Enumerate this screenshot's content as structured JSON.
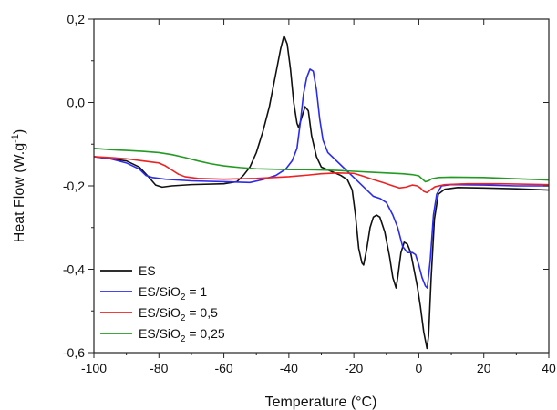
{
  "chart_data": {
    "type": "line",
    "xlabel": "Temperature (°C)",
    "ylabel_parts": {
      "main": "Heat Flow (W.g",
      "sup": "-1",
      "close": ")"
    },
    "xlim": [
      -100,
      40
    ],
    "ylim": [
      -0.6,
      0.2
    ],
    "x_ticks": [
      -100,
      -80,
      -60,
      -40,
      -20,
      0,
      20,
      40
    ],
    "x_tick_labels": [
      "-100",
      "-80",
      "-60",
      "-40",
      "-20",
      "0",
      "20",
      "40"
    ],
    "y_ticks": [
      0.2,
      0.0,
      -0.2,
      -0.4,
      -0.6
    ],
    "y_tick_labels": [
      "0,2",
      "0,0",
      "-0,2",
      "-0,4",
      "-0,6"
    ],
    "grid": false,
    "legend_position": "bottom-left",
    "series": [
      {
        "legend": {
          "pre": "ES",
          "sub": "",
          "post": ""
        },
        "color": "#111111",
        "points": [
          [
            -100,
            -0.13
          ],
          [
            -95,
            -0.135
          ],
          [
            -90,
            -0.14
          ],
          [
            -86,
            -0.155
          ],
          [
            -83,
            -0.18
          ],
          [
            -81,
            -0.198
          ],
          [
            -79,
            -0.203
          ],
          [
            -76,
            -0.2
          ],
          [
            -70,
            -0.197
          ],
          [
            -60,
            -0.195
          ],
          [
            -56,
            -0.19
          ],
          [
            -54,
            -0.175
          ],
          [
            -52,
            -0.155
          ],
          [
            -50,
            -0.12
          ],
          [
            -48,
            -0.07
          ],
          [
            -46,
            -0.01
          ],
          [
            -44,
            0.07
          ],
          [
            -42.5,
            0.13
          ],
          [
            -41.5,
            0.16
          ],
          [
            -40.5,
            0.14
          ],
          [
            -39.5,
            0.08
          ],
          [
            -38.5,
            0.0
          ],
          [
            -37.5,
            -0.05
          ],
          [
            -37,
            -0.06
          ],
          [
            -36,
            -0.035
          ],
          [
            -35,
            -0.01
          ],
          [
            -34,
            -0.02
          ],
          [
            -33,
            -0.08
          ],
          [
            -31.5,
            -0.13
          ],
          [
            -30,
            -0.155
          ],
          [
            -27,
            -0.165
          ],
          [
            -24,
            -0.175
          ],
          [
            -22,
            -0.185
          ],
          [
            -20.5,
            -0.21
          ],
          [
            -19.5,
            -0.27
          ],
          [
            -18.5,
            -0.35
          ],
          [
            -17.5,
            -0.385
          ],
          [
            -17,
            -0.39
          ],
          [
            -16,
            -0.35
          ],
          [
            -15,
            -0.3
          ],
          [
            -14,
            -0.275
          ],
          [
            -13,
            -0.27
          ],
          [
            -12,
            -0.275
          ],
          [
            -10.5,
            -0.31
          ],
          [
            -9,
            -0.37
          ],
          [
            -8,
            -0.42
          ],
          [
            -7,
            -0.445
          ],
          [
            -6.5,
            -0.42
          ],
          [
            -5.5,
            -0.36
          ],
          [
            -4.5,
            -0.335
          ],
          [
            -3.5,
            -0.34
          ],
          [
            -2.5,
            -0.36
          ],
          [
            -1.5,
            -0.4
          ],
          [
            -0.5,
            -0.44
          ],
          [
            0.5,
            -0.49
          ],
          [
            1.5,
            -0.55
          ],
          [
            2.5,
            -0.59
          ],
          [
            3,
            -0.56
          ],
          [
            3.8,
            -0.42
          ],
          [
            4.8,
            -0.28
          ],
          [
            6,
            -0.22
          ],
          [
            8,
            -0.208
          ],
          [
            12,
            -0.204
          ],
          [
            20,
            -0.205
          ],
          [
            30,
            -0.207
          ],
          [
            40,
            -0.21
          ]
        ]
      },
      {
        "legend": {
          "pre": "ES/SiO",
          "sub": "2",
          "post": " = 1"
        },
        "color": "#2b2bf0",
        "points": [
          [
            -100,
            -0.13
          ],
          [
            -95,
            -0.135
          ],
          [
            -90,
            -0.145
          ],
          [
            -86,
            -0.16
          ],
          [
            -84,
            -0.175
          ],
          [
            -82,
            -0.18
          ],
          [
            -78,
            -0.184
          ],
          [
            -70,
            -0.188
          ],
          [
            -60,
            -0.19
          ],
          [
            -52,
            -0.192
          ],
          [
            -48,
            -0.185
          ],
          [
            -44,
            -0.175
          ],
          [
            -41,
            -0.16
          ],
          [
            -39,
            -0.14
          ],
          [
            -37.5,
            -0.11
          ],
          [
            -36.5,
            -0.05
          ],
          [
            -35.5,
            0.02
          ],
          [
            -34.5,
            0.06
          ],
          [
            -33.5,
            0.08
          ],
          [
            -32.5,
            0.075
          ],
          [
            -31.5,
            0.03
          ],
          [
            -30.5,
            -0.04
          ],
          [
            -29.5,
            -0.09
          ],
          [
            -28,
            -0.12
          ],
          [
            -26,
            -0.135
          ],
          [
            -24,
            -0.15
          ],
          [
            -22,
            -0.165
          ],
          [
            -20,
            -0.18
          ],
          [
            -18,
            -0.195
          ],
          [
            -16,
            -0.21
          ],
          [
            -14,
            -0.225
          ],
          [
            -12,
            -0.23
          ],
          [
            -10,
            -0.24
          ],
          [
            -8,
            -0.27
          ],
          [
            -6.5,
            -0.3
          ],
          [
            -5,
            -0.345
          ],
          [
            -3.5,
            -0.36
          ],
          [
            -2,
            -0.36
          ],
          [
            -1,
            -0.365
          ],
          [
            0,
            -0.39
          ],
          [
            1,
            -0.42
          ],
          [
            2,
            -0.44
          ],
          [
            2.6,
            -0.445
          ],
          [
            3.5,
            -0.38
          ],
          [
            4.5,
            -0.27
          ],
          [
            5.5,
            -0.22
          ],
          [
            7,
            -0.2
          ],
          [
            10,
            -0.197
          ],
          [
            20,
            -0.198
          ],
          [
            30,
            -0.2
          ],
          [
            40,
            -0.2
          ]
        ]
      },
      {
        "legend": {
          "pre": "ES/SiO",
          "sub": "2",
          "post": " = 0,5"
        },
        "color": "#ee2222",
        "points": [
          [
            -100,
            -0.13
          ],
          [
            -95,
            -0.132
          ],
          [
            -90,
            -0.135
          ],
          [
            -85,
            -0.14
          ],
          [
            -80,
            -0.145
          ],
          [
            -78,
            -0.152
          ],
          [
            -76,
            -0.162
          ],
          [
            -74,
            -0.172
          ],
          [
            -72,
            -0.178
          ],
          [
            -68,
            -0.182
          ],
          [
            -60,
            -0.184
          ],
          [
            -50,
            -0.182
          ],
          [
            -40,
            -0.178
          ],
          [
            -34,
            -0.174
          ],
          [
            -30,
            -0.171
          ],
          [
            -25,
            -0.169
          ],
          [
            -20,
            -0.17
          ],
          [
            -17,
            -0.177
          ],
          [
            -14,
            -0.185
          ],
          [
            -11,
            -0.192
          ],
          [
            -8,
            -0.2
          ],
          [
            -6,
            -0.205
          ],
          [
            -4,
            -0.203
          ],
          [
            -2,
            -0.198
          ],
          [
            -0.5,
            -0.2
          ],
          [
            0.5,
            -0.205
          ],
          [
            1.5,
            -0.213
          ],
          [
            2.5,
            -0.216
          ],
          [
            3.5,
            -0.21
          ],
          [
            5,
            -0.202
          ],
          [
            8,
            -0.197
          ],
          [
            15,
            -0.195
          ],
          [
            25,
            -0.195
          ],
          [
            40,
            -0.197
          ]
        ]
      },
      {
        "legend": {
          "pre": "ES/SiO",
          "sub": "2",
          "post": " = 0,25"
        },
        "color": "#239b23",
        "points": [
          [
            -100,
            -0.11
          ],
          [
            -95,
            -0.113
          ],
          [
            -90,
            -0.115
          ],
          [
            -85,
            -0.117
          ],
          [
            -80,
            -0.12
          ],
          [
            -76,
            -0.125
          ],
          [
            -72,
            -0.132
          ],
          [
            -68,
            -0.14
          ],
          [
            -64,
            -0.147
          ],
          [
            -60,
            -0.152
          ],
          [
            -55,
            -0.156
          ],
          [
            -50,
            -0.159
          ],
          [
            -45,
            -0.16
          ],
          [
            -40,
            -0.161
          ],
          [
            -35,
            -0.161
          ],
          [
            -30,
            -0.162
          ],
          [
            -25,
            -0.163
          ],
          [
            -20,
            -0.165
          ],
          [
            -15,
            -0.167
          ],
          [
            -10,
            -0.169
          ],
          [
            -5,
            -0.171
          ],
          [
            -2,
            -0.173
          ],
          [
            0,
            -0.176
          ],
          [
            1,
            -0.183
          ],
          [
            2,
            -0.19
          ],
          [
            3,
            -0.188
          ],
          [
            4,
            -0.183
          ],
          [
            6,
            -0.18
          ],
          [
            10,
            -0.179
          ],
          [
            20,
            -0.18
          ],
          [
            30,
            -0.183
          ],
          [
            40,
            -0.186
          ]
        ]
      }
    ]
  }
}
